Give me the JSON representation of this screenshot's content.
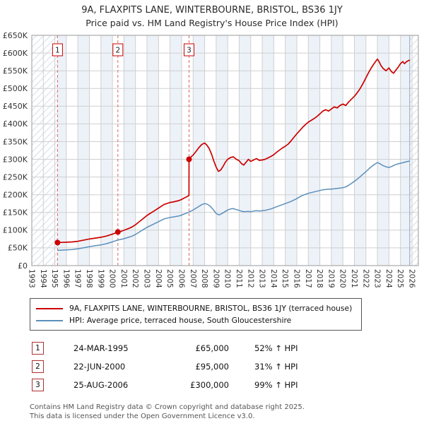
{
  "header": {
    "title": "9A, FLAXPITS LANE, WINTERBOURNE, BRISTOL, BS36 1JY",
    "subtitle": "Price paid vs. HM Land Registry's House Price Index (HPI)"
  },
  "chart_data": {
    "type": "line",
    "units": "GBP_thousands",
    "x_axis": {
      "tick_labels": [
        "1993",
        "1994",
        "1995",
        "1996",
        "1997",
        "1998",
        "1999",
        "2000",
        "2001",
        "2002",
        "2003",
        "2004",
        "2005",
        "2006",
        "2007",
        "2008",
        "2009",
        "2010",
        "2011",
        "2012",
        "2013",
        "2014",
        "2015",
        "2016",
        "2017",
        "2018",
        "2019",
        "2020",
        "2021",
        "2022",
        "2023",
        "2024",
        "2025",
        "2026"
      ],
      "min": 1993,
      "max": 2026.55
    },
    "y_axis": {
      "max_k": 650,
      "tick_step_k": 50,
      "tick_labels": [
        "£0",
        "£50K",
        "£100K",
        "£150K",
        "£200K",
        "£250K",
        "£300K",
        "£350K",
        "£400K",
        "£450K",
        "£500K",
        "£550K",
        "£600K",
        "£650K"
      ]
    },
    "colors": {
      "red": "#cc0000",
      "blue": "#5b8fbb",
      "sale_line": "#dd6666",
      "band": "#edf2f9",
      "hatch": "#d7e0ec",
      "grid": "#cfcfcf",
      "border": "#999999",
      "now_line": "#9db4cc"
    },
    "now_x": 2025.8,
    "hatch_regions": [
      [
        1993,
        1995.23
      ],
      [
        2025.8,
        2026.55
      ]
    ],
    "markers": [
      {
        "label": "1",
        "x": 1995.23,
        "y": 65
      },
      {
        "label": "2",
        "x": 2000.47,
        "y": 95
      },
      {
        "label": "3",
        "x": 2006.65,
        "y": 300
      }
    ],
    "series": [
      {
        "name": "9A, FLAXPITS LANE, WINTERBOURNE, BRISTOL, BS36 1JY (terraced house)",
        "color": "#cc0000",
        "width": 1.7,
        "points": [
          [
            1995.23,
            65
          ],
          [
            1995.5,
            65.3
          ],
          [
            1996,
            66
          ],
          [
            1996.5,
            66.8
          ],
          [
            1997,
            68.6
          ],
          [
            1997.5,
            71.9
          ],
          [
            1998,
            75.1
          ],
          [
            1998.5,
            77.6
          ],
          [
            1999,
            80
          ],
          [
            1999.5,
            83.5
          ],
          [
            2000,
            88.9
          ],
          [
            2000.25,
            92
          ],
          [
            2000.47,
            95
          ],
          [
            2000.75,
            97
          ],
          [
            2001,
            99.6
          ],
          [
            2001.25,
            102.8
          ],
          [
            2001.5,
            106.1
          ],
          [
            2001.75,
            110
          ],
          [
            2002,
            115.3
          ],
          [
            2002.25,
            121.8
          ],
          [
            2002.5,
            128.4
          ],
          [
            2002.75,
            134.9
          ],
          [
            2003,
            141.5
          ],
          [
            2003.25,
            146.7
          ],
          [
            2003.5,
            152
          ],
          [
            2003.75,
            157.2
          ],
          [
            2004,
            162.4
          ],
          [
            2004.25,
            167.7
          ],
          [
            2004.5,
            172.9
          ],
          [
            2004.75,
            175.5
          ],
          [
            2005,
            178.2
          ],
          [
            2005.25,
            179.5
          ],
          [
            2005.5,
            181.4
          ],
          [
            2005.75,
            183.4
          ],
          [
            2006,
            186.7
          ],
          [
            2006.25,
            191.3
          ],
          [
            2006.5,
            195.2
          ],
          [
            2006.64,
            198
          ],
          [
            2006.65,
            300
          ],
          [
            2006.75,
            305
          ],
          [
            2007,
            312
          ],
          [
            2007.25,
            322
          ],
          [
            2007.5,
            333
          ],
          [
            2007.75,
            342
          ],
          [
            2008,
            346
          ],
          [
            2008.2,
            340
          ],
          [
            2008.4,
            330
          ],
          [
            2008.6,
            315
          ],
          [
            2008.8,
            295
          ],
          [
            2009,
            278
          ],
          [
            2009.2,
            266
          ],
          [
            2009.4,
            270
          ],
          [
            2009.6,
            280
          ],
          [
            2009.8,
            292
          ],
          [
            2010,
            300
          ],
          [
            2010.25,
            305
          ],
          [
            2010.5,
            307
          ],
          [
            2010.75,
            300
          ],
          [
            2011,
            296
          ],
          [
            2011.2,
            288
          ],
          [
            2011.4,
            284
          ],
          [
            2011.6,
            292
          ],
          [
            2011.8,
            300
          ],
          [
            2012,
            294
          ],
          [
            2012.25,
            298
          ],
          [
            2012.5,
            302
          ],
          [
            2012.75,
            297
          ],
          [
            2013,
            298
          ],
          [
            2013.25,
            300
          ],
          [
            2013.5,
            304
          ],
          [
            2013.75,
            308
          ],
          [
            2014,
            313
          ],
          [
            2014.25,
            320
          ],
          [
            2014.5,
            326
          ],
          [
            2014.75,
            332
          ],
          [
            2015,
            337
          ],
          [
            2015.25,
            343
          ],
          [
            2015.5,
            352
          ],
          [
            2015.75,
            362
          ],
          [
            2016,
            372
          ],
          [
            2016.25,
            381
          ],
          [
            2016.5,
            390
          ],
          [
            2016.75,
            398
          ],
          [
            2017,
            405
          ],
          [
            2017.25,
            410
          ],
          [
            2017.5,
            415
          ],
          [
            2017.75,
            421
          ],
          [
            2018,
            428
          ],
          [
            2018.25,
            436
          ],
          [
            2018.5,
            440
          ],
          [
            2018.75,
            436
          ],
          [
            2019,
            442
          ],
          [
            2019.25,
            448
          ],
          [
            2019.5,
            445
          ],
          [
            2019.75,
            452
          ],
          [
            2020,
            456
          ],
          [
            2020.25,
            452
          ],
          [
            2020.5,
            462
          ],
          [
            2020.75,
            470
          ],
          [
            2021,
            478
          ],
          [
            2021.25,
            488
          ],
          [
            2021.5,
            500
          ],
          [
            2021.75,
            514
          ],
          [
            2022,
            530
          ],
          [
            2022.25,
            546
          ],
          [
            2022.5,
            560
          ],
          [
            2022.75,
            572
          ],
          [
            2023,
            583
          ],
          [
            2023.15,
            575
          ],
          [
            2023.3,
            565
          ],
          [
            2023.5,
            556
          ],
          [
            2023.75,
            550
          ],
          [
            2024,
            558
          ],
          [
            2024.2,
            548
          ],
          [
            2024.4,
            543
          ],
          [
            2024.6,
            552
          ],
          [
            2024.8,
            560
          ],
          [
            2025,
            570
          ],
          [
            2025.2,
            576
          ],
          [
            2025.35,
            570
          ],
          [
            2025.5,
            575
          ],
          [
            2025.65,
            578
          ],
          [
            2025.8,
            580
          ]
        ]
      },
      {
        "name": "HPI: Average price, terraced house, South Gloucestershire",
        "color": "#5b8fbb",
        "width": 1.5,
        "points": [
          [
            1995.23,
            43
          ],
          [
            1995.5,
            43.5
          ],
          [
            1996,
            44.5
          ],
          [
            1996.5,
            45.5
          ],
          [
            1997,
            47.5
          ],
          [
            1997.5,
            50.5
          ],
          [
            1998,
            53.5
          ],
          [
            1998.5,
            56
          ],
          [
            1999,
            58.5
          ],
          [
            1999.5,
            62
          ],
          [
            2000,
            67
          ],
          [
            2000.25,
            70
          ],
          [
            2000.5,
            72.5
          ],
          [
            2000.75,
            74
          ],
          [
            2001,
            76
          ],
          [
            2001.25,
            78.5
          ],
          [
            2001.5,
            81
          ],
          [
            2001.75,
            84
          ],
          [
            2002,
            88
          ],
          [
            2002.25,
            93
          ],
          [
            2002.5,
            98
          ],
          [
            2002.75,
            103
          ],
          [
            2003,
            108
          ],
          [
            2003.25,
            112
          ],
          [
            2003.5,
            116
          ],
          [
            2003.75,
            120
          ],
          [
            2004,
            124
          ],
          [
            2004.25,
            128
          ],
          [
            2004.5,
            132
          ],
          [
            2004.75,
            134
          ],
          [
            2005,
            136
          ],
          [
            2005.25,
            137
          ],
          [
            2005.5,
            138.5
          ],
          [
            2005.75,
            140
          ],
          [
            2006,
            142.5
          ],
          [
            2006.25,
            146
          ],
          [
            2006.5,
            149
          ],
          [
            2006.75,
            153
          ],
          [
            2007,
            157
          ],
          [
            2007.25,
            162
          ],
          [
            2007.5,
            167
          ],
          [
            2007.75,
            172
          ],
          [
            2008,
            175
          ],
          [
            2008.25,
            173
          ],
          [
            2008.5,
            167
          ],
          [
            2008.75,
            158
          ],
          [
            2009,
            147
          ],
          [
            2009.25,
            143
          ],
          [
            2009.5,
            147
          ],
          [
            2009.75,
            152
          ],
          [
            2010,
            157
          ],
          [
            2010.25,
            160
          ],
          [
            2010.5,
            161
          ],
          [
            2010.75,
            158
          ],
          [
            2011,
            156
          ],
          [
            2011.25,
            153
          ],
          [
            2011.5,
            152
          ],
          [
            2011.75,
            153
          ],
          [
            2012,
            152
          ],
          [
            2012.25,
            154
          ],
          [
            2012.5,
            155
          ],
          [
            2012.75,
            154
          ],
          [
            2013,
            155
          ],
          [
            2013.25,
            156
          ],
          [
            2013.5,
            158
          ],
          [
            2013.75,
            160
          ],
          [
            2014,
            163
          ],
          [
            2014.25,
            166
          ],
          [
            2014.5,
            169
          ],
          [
            2014.75,
            172
          ],
          [
            2015,
            175
          ],
          [
            2015.25,
            178
          ],
          [
            2015.5,
            181
          ],
          [
            2015.75,
            185
          ],
          [
            2016,
            189
          ],
          [
            2016.25,
            194
          ],
          [
            2016.5,
            198
          ],
          [
            2016.75,
            201
          ],
          [
            2017,
            204
          ],
          [
            2017.25,
            206
          ],
          [
            2017.5,
            208
          ],
          [
            2017.75,
            210
          ],
          [
            2018,
            212
          ],
          [
            2018.25,
            214
          ],
          [
            2018.5,
            215
          ],
          [
            2018.75,
            216
          ],
          [
            2019,
            216
          ],
          [
            2019.25,
            217
          ],
          [
            2019.5,
            218
          ],
          [
            2019.75,
            219
          ],
          [
            2020,
            220
          ],
          [
            2020.25,
            222
          ],
          [
            2020.5,
            227
          ],
          [
            2020.75,
            232
          ],
          [
            2021,
            238
          ],
          [
            2021.25,
            244
          ],
          [
            2021.5,
            251
          ],
          [
            2021.75,
            258
          ],
          [
            2022,
            265
          ],
          [
            2022.25,
            273
          ],
          [
            2022.5,
            280
          ],
          [
            2022.75,
            286
          ],
          [
            2023,
            291
          ],
          [
            2023.25,
            287
          ],
          [
            2023.5,
            282
          ],
          [
            2023.75,
            279
          ],
          [
            2024,
            277
          ],
          [
            2024.25,
            280
          ],
          [
            2024.5,
            284
          ],
          [
            2024.75,
            287
          ],
          [
            2025,
            289
          ],
          [
            2025.25,
            291
          ],
          [
            2025.5,
            293
          ],
          [
            2025.8,
            295
          ]
        ]
      }
    ]
  },
  "sales": [
    {
      "num": "1",
      "date": "24-MAR-1995",
      "price": "£65,000",
      "hpi": "52% ↑ HPI"
    },
    {
      "num": "2",
      "date": "22-JUN-2000",
      "price": "£95,000",
      "hpi": "31% ↑ HPI"
    },
    {
      "num": "3",
      "date": "25-AUG-2006",
      "price": "£300,000",
      "hpi": "99% ↑ HPI"
    }
  ],
  "footer": {
    "line1": "Contains HM Land Registry data © Crown copyright and database right 2025.",
    "line2": "This data is licensed under the Open Government Licence v3.0."
  }
}
